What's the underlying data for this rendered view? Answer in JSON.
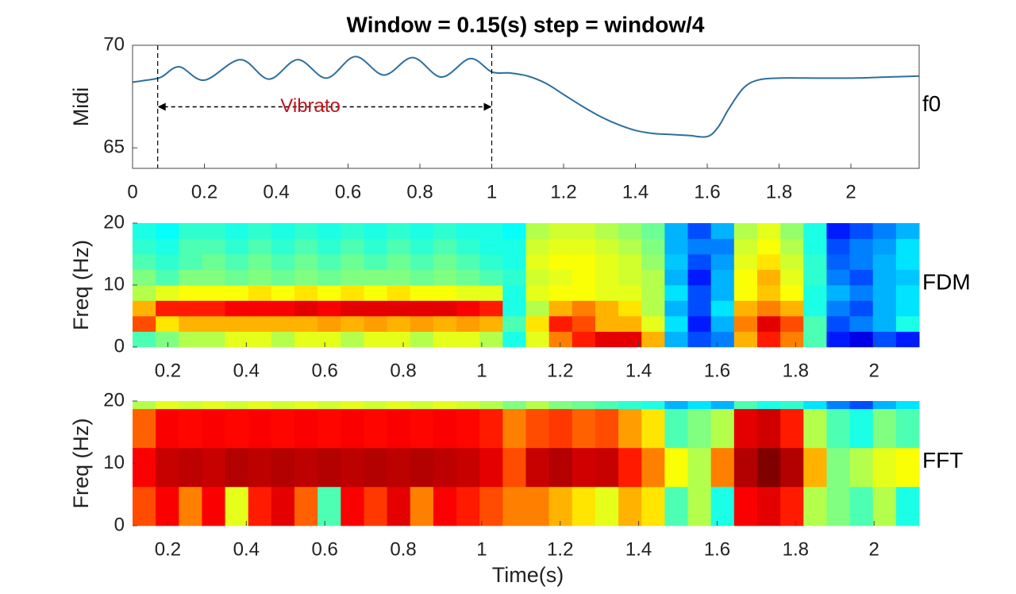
{
  "chart_data": [
    {
      "type": "line",
      "title": "Window = 0.15(s) step = window/4",
      "ylabel": "Midi",
      "label": "f0",
      "color": "#2e6f9e",
      "x": [
        0,
        0.04,
        0.08,
        0.13,
        0.2,
        0.3,
        0.38,
        0.46,
        0.54,
        0.62,
        0.7,
        0.78,
        0.86,
        0.94,
        1.0,
        1.05,
        1.1,
        1.15,
        1.2,
        1.25,
        1.3,
        1.35,
        1.4,
        1.45,
        1.5,
        1.55,
        1.6,
        1.63,
        1.66,
        1.7,
        1.74,
        1.8,
        1.9,
        2.0,
        2.1,
        2.19
      ],
      "values": [
        68.2,
        68.3,
        68.45,
        68.95,
        68.3,
        69.3,
        68.35,
        69.3,
        68.4,
        69.45,
        68.55,
        69.4,
        68.45,
        69.35,
        68.7,
        68.65,
        68.5,
        68.15,
        67.6,
        67.05,
        66.55,
        66.15,
        65.85,
        65.7,
        65.65,
        65.6,
        65.55,
        66.0,
        66.9,
        67.9,
        68.3,
        68.4,
        68.4,
        68.4,
        68.45,
        68.5
      ],
      "xlim": [
        0,
        2.19
      ],
      "ylim": [
        64,
        70
      ],
      "xticks": [
        0,
        0.2,
        0.4,
        0.6,
        0.8,
        1,
        1.2,
        1.4,
        1.6,
        1.8,
        2
      ],
      "yticks": [
        65,
        70
      ],
      "annotation": {
        "text": "Vibrato",
        "x_start": 0.07,
        "x_end": 1.0,
        "y": 67.0,
        "color": "#c0141a"
      }
    },
    {
      "type": "heatmap",
      "ylabel": "Freq (Hz)",
      "label": "FDM",
      "colormap": "jet",
      "xlim": [
        0.11,
        2.115
      ],
      "ylim": [
        0,
        20
      ],
      "xticks": [
        0.2,
        0.4,
        0.6,
        0.8,
        1,
        1.2,
        1.4,
        1.6,
        1.8,
        2
      ],
      "yticks": [
        0,
        10,
        20
      ],
      "y_edges": [
        0,
        2.5,
        5,
        7.5,
        10,
        12.5,
        15,
        17.5,
        20
      ],
      "z": [
        [
          0.45,
          0.5,
          0.55,
          0.55,
          0.6,
          0.6,
          0.55,
          0.6,
          0.6,
          0.55,
          0.6,
          0.6,
          0.55,
          0.6,
          0.6,
          0.55,
          0.4,
          0.6,
          0.75,
          0.85,
          0.9,
          0.9,
          0.7,
          0.3,
          0.2,
          0.25,
          0.7,
          0.85,
          0.75,
          0.45,
          0.15,
          0.1,
          0.2,
          0.15
        ],
        [
          0.8,
          0.65,
          0.7,
          0.7,
          0.7,
          0.7,
          0.7,
          0.7,
          0.72,
          0.7,
          0.72,
          0.7,
          0.72,
          0.7,
          0.72,
          0.7,
          0.45,
          0.65,
          0.85,
          0.8,
          0.7,
          0.7,
          0.6,
          0.35,
          0.15,
          0.3,
          0.75,
          0.9,
          0.8,
          0.45,
          0.2,
          0.25,
          0.3,
          0.4
        ],
        [
          0.7,
          0.85,
          0.85,
          0.85,
          0.88,
          0.88,
          0.88,
          0.9,
          0.88,
          0.9,
          0.9,
          0.9,
          0.9,
          0.9,
          0.88,
          0.85,
          0.4,
          0.55,
          0.7,
          0.75,
          0.7,
          0.65,
          0.55,
          0.3,
          0.2,
          0.35,
          0.7,
          0.75,
          0.7,
          0.4,
          0.25,
          0.2,
          0.3,
          0.35
        ],
        [
          0.55,
          0.6,
          0.62,
          0.62,
          0.62,
          0.65,
          0.62,
          0.65,
          0.62,
          0.65,
          0.62,
          0.65,
          0.62,
          0.62,
          0.6,
          0.6,
          0.4,
          0.6,
          0.62,
          0.62,
          0.6,
          0.6,
          0.55,
          0.35,
          0.2,
          0.3,
          0.62,
          0.68,
          0.62,
          0.4,
          0.3,
          0.25,
          0.3,
          0.35
        ],
        [
          0.5,
          0.45,
          0.5,
          0.5,
          0.48,
          0.5,
          0.48,
          0.5,
          0.48,
          0.5,
          0.5,
          0.5,
          0.48,
          0.5,
          0.48,
          0.45,
          0.42,
          0.58,
          0.6,
          0.62,
          0.6,
          0.58,
          0.55,
          0.3,
          0.15,
          0.3,
          0.62,
          0.7,
          0.6,
          0.42,
          0.25,
          0.2,
          0.3,
          0.32
        ],
        [
          0.45,
          0.42,
          0.45,
          0.48,
          0.45,
          0.48,
          0.45,
          0.48,
          0.45,
          0.48,
          0.45,
          0.48,
          0.45,
          0.48,
          0.45,
          0.42,
          0.4,
          0.6,
          0.62,
          0.62,
          0.6,
          0.58,
          0.52,
          0.32,
          0.2,
          0.28,
          0.6,
          0.65,
          0.58,
          0.42,
          0.22,
          0.25,
          0.3,
          0.35
        ],
        [
          0.42,
          0.4,
          0.45,
          0.45,
          0.42,
          0.45,
          0.42,
          0.45,
          0.42,
          0.45,
          0.42,
          0.45,
          0.42,
          0.45,
          0.42,
          0.4,
          0.4,
          0.58,
          0.6,
          0.6,
          0.58,
          0.55,
          0.5,
          0.3,
          0.25,
          0.25,
          0.58,
          0.62,
          0.55,
          0.4,
          0.2,
          0.25,
          0.28,
          0.35
        ],
        [
          0.4,
          0.38,
          0.42,
          0.42,
          0.4,
          0.42,
          0.4,
          0.42,
          0.4,
          0.42,
          0.4,
          0.42,
          0.4,
          0.42,
          0.4,
          0.4,
          0.38,
          0.55,
          0.58,
          0.58,
          0.55,
          0.52,
          0.48,
          0.3,
          0.2,
          0.3,
          0.55,
          0.6,
          0.52,
          0.4,
          0.15,
          0.2,
          0.25,
          0.3
        ]
      ]
    },
    {
      "type": "heatmap",
      "ylabel": "Freq (Hz)",
      "label": "FFT",
      "xlabel": "Time(s)",
      "colormap": "jet",
      "xlim": [
        0.11,
        2.115
      ],
      "ylim": [
        0,
        20
      ],
      "xticks": [
        0.2,
        0.4,
        0.6,
        0.8,
        1,
        1.2,
        1.4,
        1.6,
        1.8,
        2
      ],
      "yticks": [
        0,
        10,
        20
      ],
      "y_edges": [
        0,
        6.25,
        12.5,
        18.75,
        20
      ],
      "z": [
        [
          0.8,
          0.88,
          0.75,
          0.88,
          0.6,
          0.85,
          0.9,
          0.78,
          0.45,
          0.88,
          0.82,
          0.9,
          0.75,
          0.88,
          0.85,
          0.8,
          0.75,
          0.75,
          0.7,
          0.65,
          0.6,
          0.7,
          0.65,
          0.45,
          0.55,
          0.4,
          0.88,
          0.9,
          0.85,
          0.55,
          0.5,
          0.45,
          0.55,
          0.4
        ],
        [
          0.88,
          0.93,
          0.94,
          0.93,
          0.95,
          0.94,
          0.95,
          0.94,
          0.95,
          0.94,
          0.95,
          0.94,
          0.95,
          0.94,
          0.93,
          0.9,
          0.8,
          0.93,
          0.95,
          0.92,
          0.93,
          0.85,
          0.75,
          0.62,
          0.55,
          0.75,
          0.95,
          1.0,
          0.95,
          0.7,
          0.5,
          0.55,
          0.6,
          0.62
        ],
        [
          0.78,
          0.88,
          0.87,
          0.88,
          0.87,
          0.88,
          0.87,
          0.88,
          0.87,
          0.88,
          0.87,
          0.88,
          0.87,
          0.88,
          0.87,
          0.85,
          0.75,
          0.8,
          0.82,
          0.78,
          0.8,
          0.72,
          0.65,
          0.45,
          0.5,
          0.55,
          0.9,
          0.92,
          0.85,
          0.55,
          0.45,
          0.4,
          0.5,
          0.45
        ],
        [
          0.55,
          0.6,
          0.58,
          0.6,
          0.58,
          0.6,
          0.58,
          0.6,
          0.58,
          0.6,
          0.58,
          0.6,
          0.58,
          0.6,
          0.58,
          0.55,
          0.5,
          0.55,
          0.5,
          0.48,
          0.45,
          0.42,
          0.4,
          0.3,
          0.35,
          0.3,
          0.45,
          0.4,
          0.42,
          0.35,
          0.25,
          0.2,
          0.3,
          0.35
        ]
      ]
    }
  ]
}
